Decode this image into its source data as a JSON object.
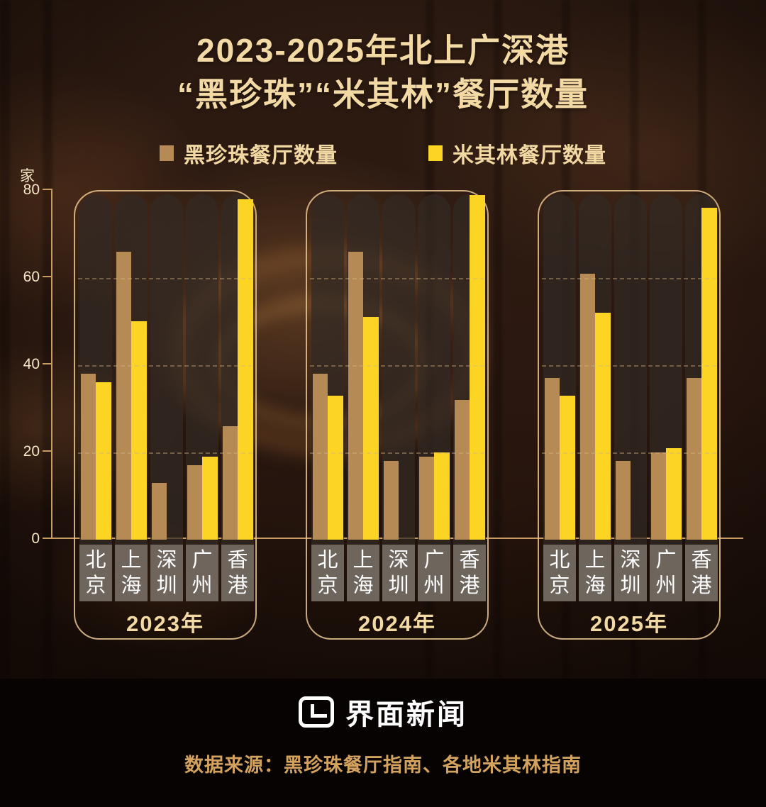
{
  "title": {
    "line1": "2023-2025年北上广深港",
    "line2": "“黑珍珠”“米其林”餐厅数量"
  },
  "legend": [
    {
      "label": "黑珍珠餐厅数量",
      "color": "#b68a55"
    },
    {
      "label": "米其林餐厅数量",
      "color": "#fbd424"
    }
  ],
  "y_axis": {
    "unit": "家",
    "ticks": [
      0,
      20,
      40,
      60,
      80
    ],
    "max": 80
  },
  "chart_data": {
    "type": "bar",
    "title": "2023-2025年北上广深港“黑珍珠”“米其林”餐厅数量",
    "ylabel": "家",
    "ylim": [
      0,
      80
    ],
    "grid": "dashed horizontal lines at 20/40/60",
    "legend_position": "top",
    "categories": [
      "北京",
      "上海",
      "深圳",
      "广州",
      "香港"
    ],
    "groups": [
      {
        "year": "2023年",
        "series": [
          {
            "name": "黑珍珠餐厅数量",
            "color": "#b68a55",
            "values": [
              38,
              66,
              13,
              17,
              26
            ]
          },
          {
            "name": "米其林餐厅数量",
            "color": "#fbd424",
            "values": [
              36,
              50,
              null,
              19,
              78
            ]
          }
        ]
      },
      {
        "year": "2024年",
        "series": [
          {
            "name": "黑珍珠餐厅数量",
            "color": "#b68a55",
            "values": [
              38,
              66,
              18,
              19,
              32
            ]
          },
          {
            "name": "米其林餐厅数量",
            "color": "#fbd424",
            "values": [
              33,
              51,
              null,
              20,
              79
            ]
          }
        ]
      },
      {
        "year": "2025年",
        "series": [
          {
            "name": "黑珍珠餐厅数量",
            "color": "#b68a55",
            "values": [
              37,
              61,
              18,
              20,
              37
            ]
          },
          {
            "name": "米其林餐厅数量",
            "color": "#fbd424",
            "values": [
              33,
              52,
              null,
              21,
              76
            ]
          }
        ]
      }
    ]
  },
  "footer": {
    "logo_text": "界面新闻",
    "source": "数据来源：黑珍珠餐厅指南、各地米其林指南"
  }
}
